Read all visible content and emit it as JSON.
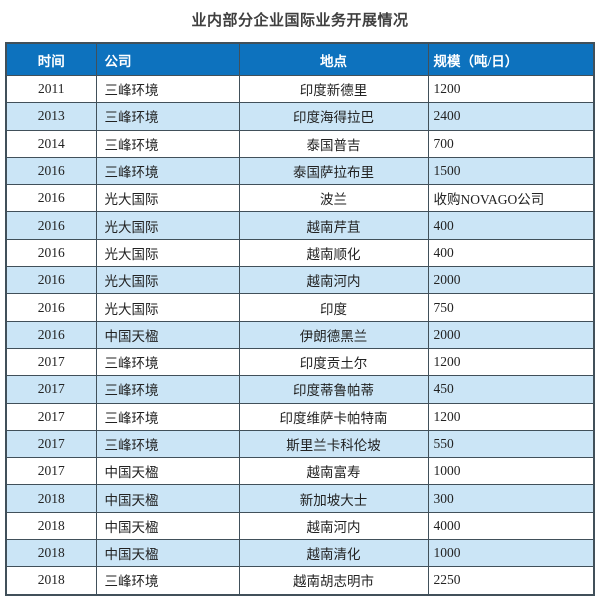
{
  "title": "业内部分企业国际业务开展情况",
  "table": {
    "columns": [
      {
        "name": "time",
        "label": "时间"
      },
      {
        "name": "company",
        "label": "公司"
      },
      {
        "name": "location",
        "label": "地点"
      },
      {
        "name": "scale",
        "label": "规模（吨/日）"
      }
    ],
    "rows": [
      [
        "2011",
        "三峰环境",
        "印度新德里",
        "1200"
      ],
      [
        "2013",
        "三峰环境",
        "印度海得拉巴",
        "2400"
      ],
      [
        "2014",
        "三峰环境",
        "泰国普吉",
        "700"
      ],
      [
        "2016",
        "三峰环境",
        "泰国萨拉布里",
        "1500"
      ],
      [
        "2016",
        "光大国际",
        "波兰",
        "收购NOVAGO公司"
      ],
      [
        "2016",
        "光大国际",
        "越南芹苴",
        "400"
      ],
      [
        "2016",
        "光大国际",
        "越南顺化",
        "400"
      ],
      [
        "2016",
        "光大国际",
        "越南河内",
        "2000"
      ],
      [
        "2016",
        "光大国际",
        "印度",
        "750"
      ],
      [
        "2016",
        "中国天楹",
        "伊朗德黑兰",
        "2000"
      ],
      [
        "2017",
        "三峰环境",
        "印度贡土尔",
        "1200"
      ],
      [
        "2017",
        "三峰环境",
        "印度蒂鲁帕蒂",
        "450"
      ],
      [
        "2017",
        "三峰环境",
        "印度维萨卡帕特南",
        "1200"
      ],
      [
        "2017",
        "三峰环境",
        "斯里兰卡科伦坡",
        "550"
      ],
      [
        "2017",
        "中国天楹",
        "越南富寿",
        "1000"
      ],
      [
        "2018",
        "中国天楹",
        "新加坡大士",
        "300"
      ],
      [
        "2018",
        "中国天楹",
        "越南河内",
        "4000"
      ],
      [
        "2018",
        "中国天楹",
        "越南清化",
        "1000"
      ],
      [
        "2018",
        "三峰环境",
        "越南胡志明市",
        "2250"
      ]
    ]
  },
  "colors": {
    "header_bg": "#0d72be",
    "header_text": "#ffffff",
    "row_bg": "#ffffff",
    "row_alt_bg": "#cbe5f6",
    "border": "#41505a",
    "title_text": "#3f3f3f",
    "body_text": "#222222"
  }
}
